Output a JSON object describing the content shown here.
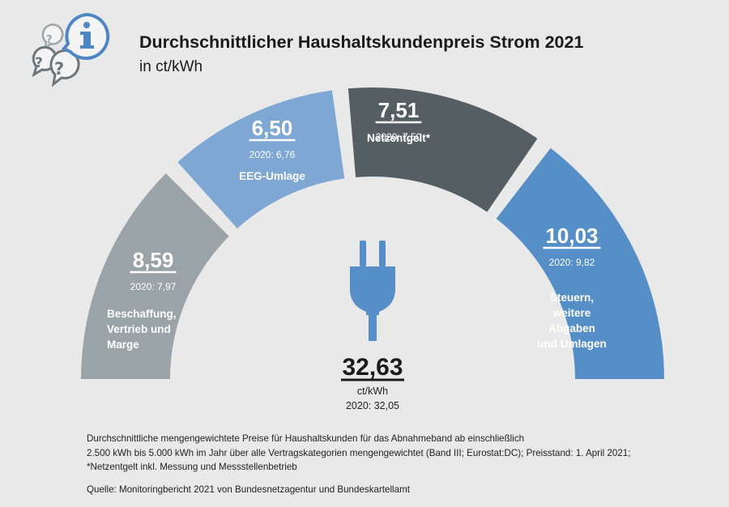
{
  "header": {
    "title": "Durchschnittlicher Haushaltskundenpreis Strom 2021",
    "subtitle": "in ct/kWh"
  },
  "colors": {
    "background": "#e9e9e9",
    "segment_beschaffung": "#9aa3a8",
    "segment_eeg": "#7fa7d3",
    "segment_netzentgelt": "#545e63",
    "segment_steuern": "#568ec7",
    "plug": "#568ec7",
    "info_icon": "#4e87c3"
  },
  "chart_data": {
    "type": "pie",
    "subtype": "half-donut",
    "unit": "ct/kWh",
    "total": 32.63,
    "total_label": "32,63",
    "total_unit": "ct/kWh",
    "total_prev_label": "2020: 32,05",
    "segments": [
      {
        "name": "Beschaffung, Vertrieb und Marge",
        "label_lines": [
          "Beschaffung,",
          "Vertrieb und",
          "Marge"
        ],
        "value": 8.59,
        "value_label": "8,59",
        "prev_value": 7.97,
        "prev_label": "2020: 7,97",
        "color": "#9aa3a8",
        "text_color": "#ffffff"
      },
      {
        "name": "EEG-Umlage",
        "label_lines": [
          "EEG-Umlage"
        ],
        "value": 6.5,
        "value_label": "6,50",
        "prev_value": 6.76,
        "prev_label": "2020: 6,76",
        "color": "#7fa7d3",
        "text_color": "#ffffff"
      },
      {
        "name": "Netzentgelt*",
        "label_lines": [
          "Netzentgelt*"
        ],
        "value": 7.51,
        "value_label": "7,51",
        "prev_value": 7.5,
        "prev_label": "2020: 7,50",
        "color": "#545e63",
        "text_color": "#ffffff"
      },
      {
        "name": "Steuern, weitere Abgaben und Umlagen",
        "label_lines": [
          "Steuern,",
          "weitere",
          "Abgaben",
          "und Umlagen"
        ],
        "value": 10.03,
        "value_label": "10,03",
        "prev_value": 9.82,
        "prev_label": "2020: 9,82",
        "color": "#568ec7",
        "text_color": "#ffffff"
      }
    ]
  },
  "footnotes": {
    "line1": "Durchschnittliche mengengewichtete Preise für Haushaltskunden für das Abnahmeband ab einschließlich",
    "line2": "2.500 kWh bis 5.000 kWh im Jahr über alle Vertragskategorien mengengewichtet (Band III; Eurostat:DC); Preisstand: 1. April 2021;",
    "line3": "*Netzentgelt inkl. Messung und Messstellenbetrieb",
    "source": "Quelle: Monitoringbericht 2021 von Bundesnetzagentur und Bundeskartellamt"
  }
}
